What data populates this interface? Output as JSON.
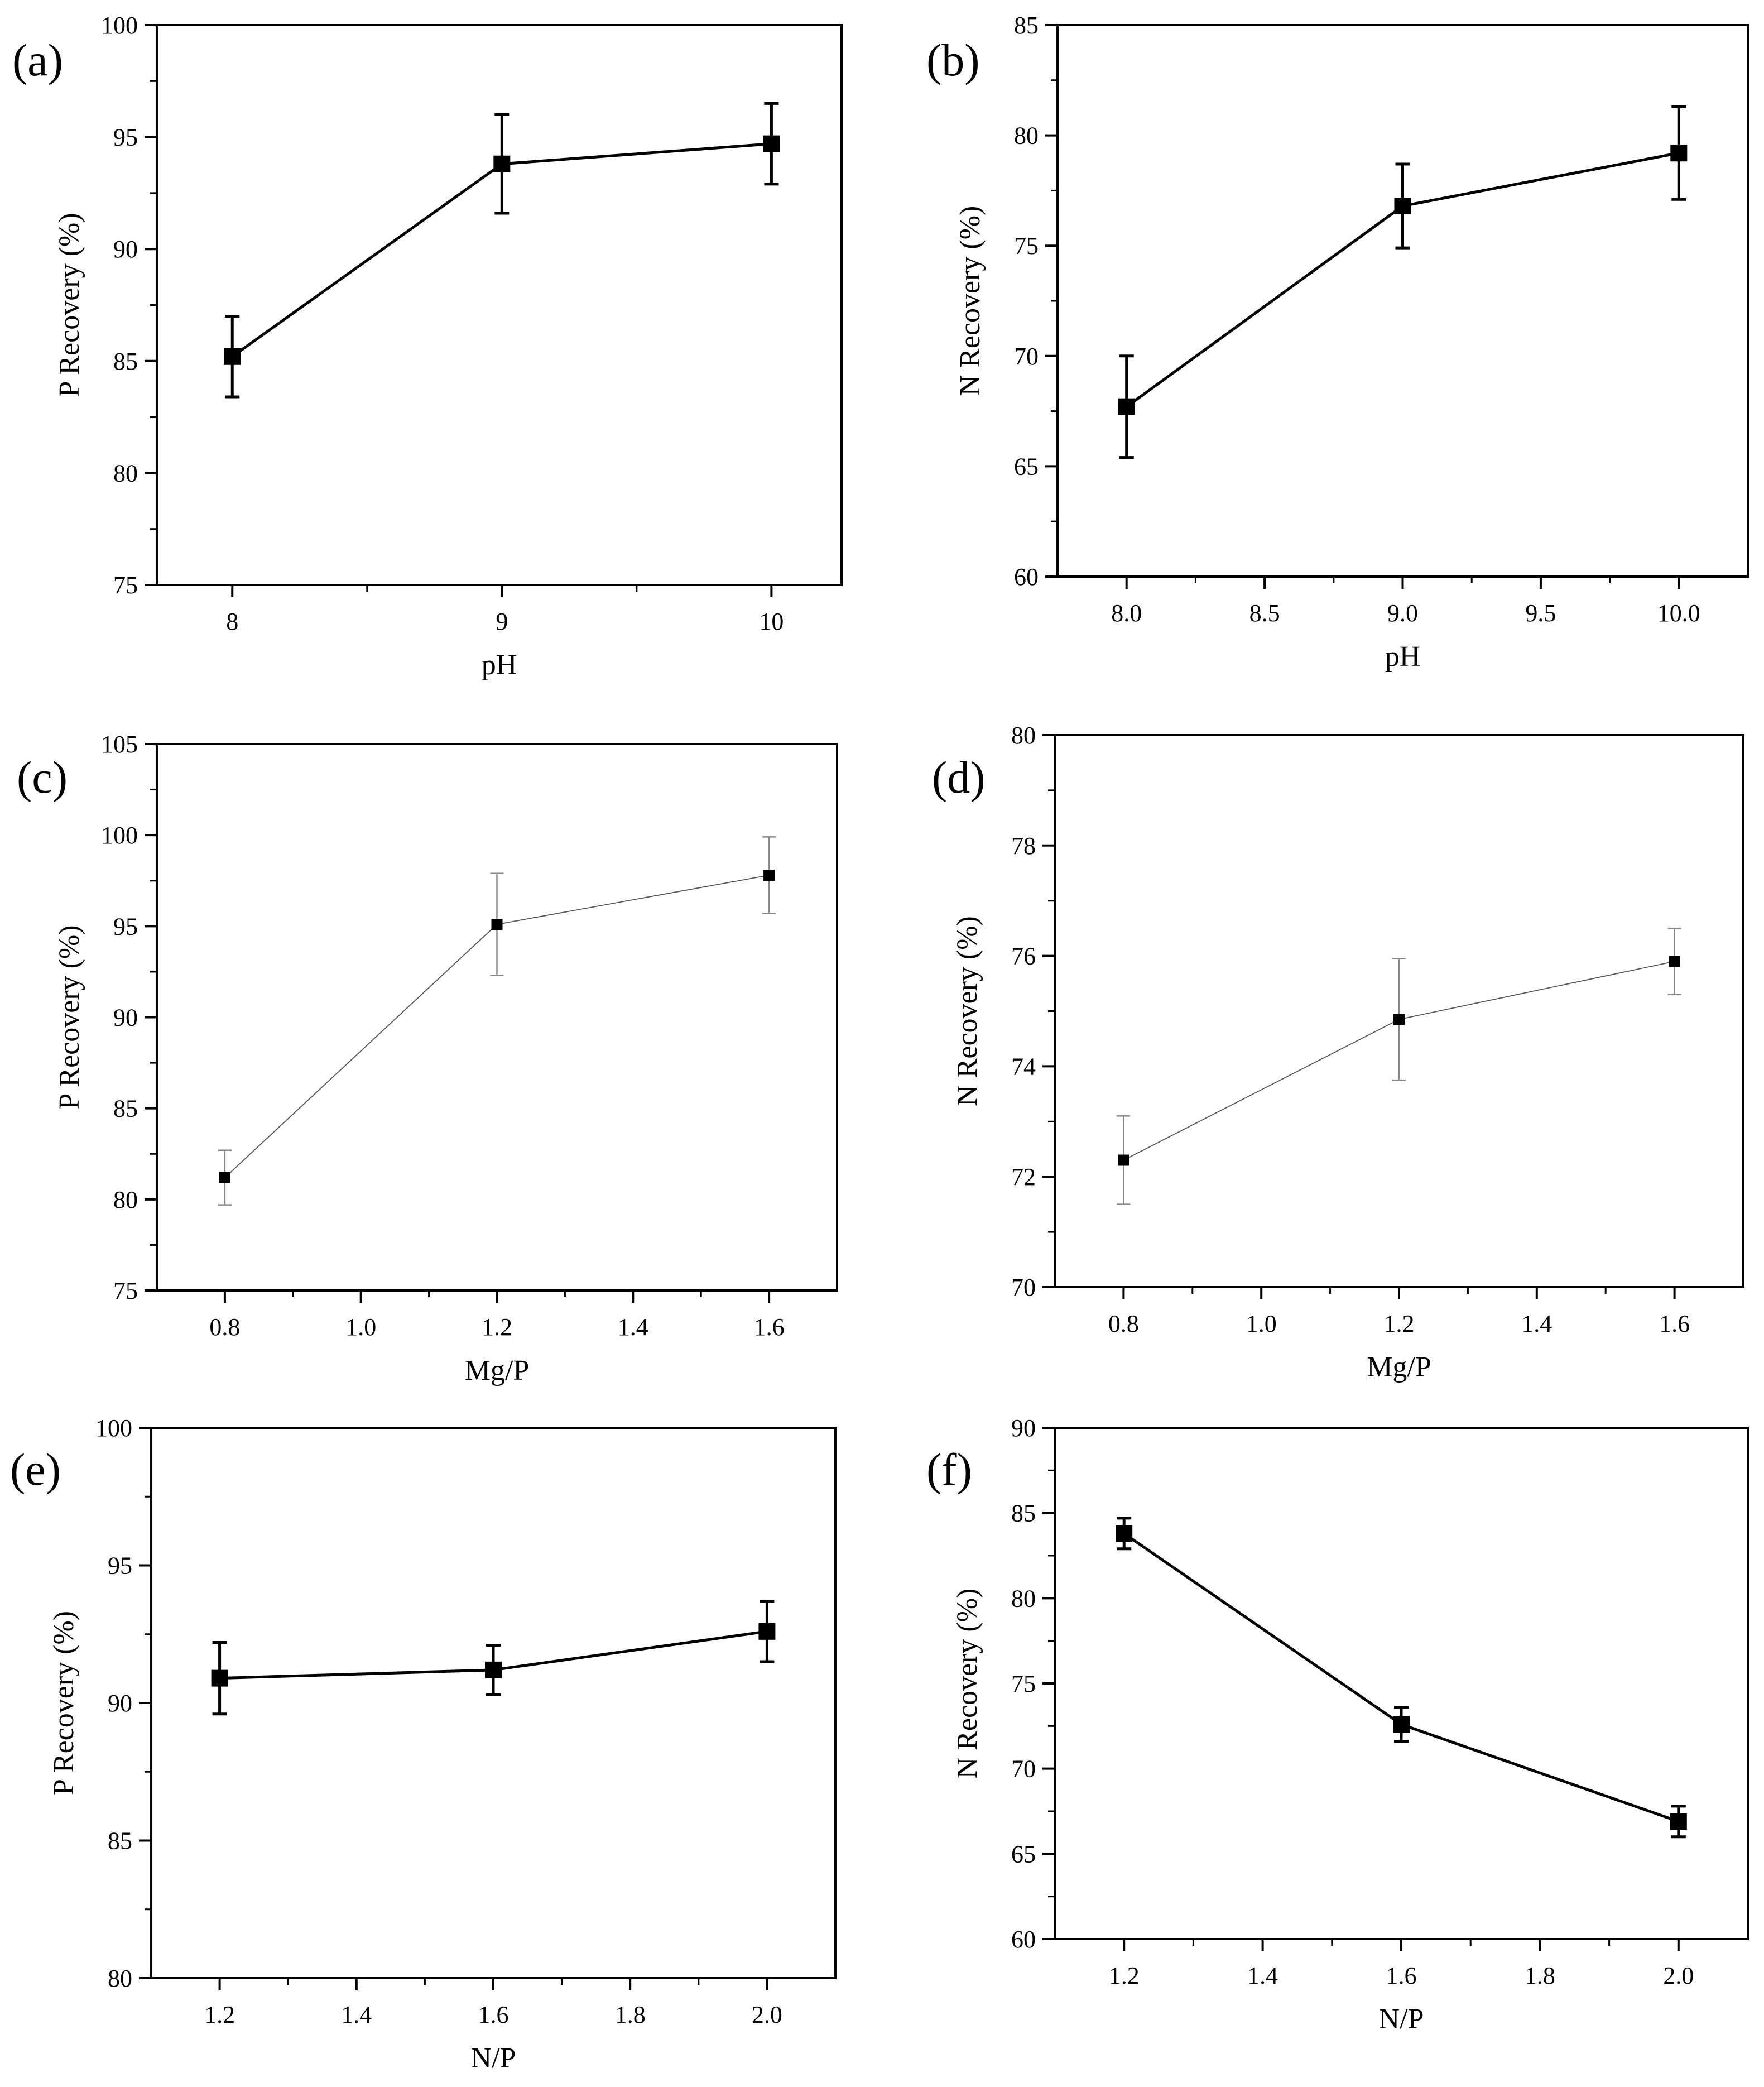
{
  "chart_data": [
    {
      "type": "line",
      "panel_label": "(a)",
      "title": "",
      "xlabel": "pH",
      "ylabel": "P Recovery (%)",
      "xlim": [
        7.72,
        10.26
      ],
      "ylim": [
        75,
        100
      ],
      "xticks": [
        8,
        9,
        10
      ],
      "xtick_labels": [
        "8",
        "9",
        "10"
      ],
      "yticks": [
        75,
        80,
        85,
        90,
        95,
        100
      ],
      "ytick_labels": [
        "75",
        "80",
        "85",
        "90",
        "95",
        "100"
      ],
      "style": "bold",
      "series": [
        {
          "name": "P Recovery",
          "x": [
            8,
            9,
            10
          ],
          "values": [
            85.2,
            93.8,
            94.7
          ],
          "errors": [
            1.8,
            2.2,
            1.8
          ]
        }
      ]
    },
    {
      "type": "line",
      "panel_label": "(b)",
      "title": "",
      "xlabel": "pH",
      "ylabel": "N Recovery (%)",
      "xlim": [
        7.75,
        10.25
      ],
      "ylim": [
        60,
        85
      ],
      "xticks": [
        8.0,
        8.5,
        9.0,
        9.5,
        10.0
      ],
      "xtick_labels": [
        "8.0",
        "8.5",
        "9.0",
        "9.5",
        "10.0"
      ],
      "yticks": [
        60,
        65,
        70,
        75,
        80,
        85
      ],
      "ytick_labels": [
        "60",
        "65",
        "70",
        "75",
        "80",
        "85"
      ],
      "style": "bold",
      "series": [
        {
          "name": "N Recovery",
          "x": [
            8,
            9,
            10
          ],
          "values": [
            67.7,
            76.8,
            79.2
          ],
          "errors": [
            2.3,
            1.9,
            2.1
          ]
        }
      ]
    },
    {
      "type": "line",
      "panel_label": "(c)",
      "title": "",
      "xlabel": "Mg/P",
      "ylabel": "P Recovery (%)",
      "xlim": [
        0.7,
        1.7
      ],
      "ylim": [
        75,
        105
      ],
      "xticks": [
        0.8,
        1.0,
        1.2,
        1.4,
        1.6
      ],
      "xtick_labels": [
        "0.8",
        "1.0",
        "1.2",
        "1.4",
        "1.6"
      ],
      "yticks": [
        75,
        80,
        85,
        90,
        95,
        100,
        105
      ],
      "ytick_labels": [
        "75",
        "80",
        "85",
        "90",
        "95",
        "100",
        "105"
      ],
      "style": "thin",
      "series": [
        {
          "name": "P Recovery",
          "x": [
            0.8,
            1.2,
            1.6
          ],
          "values": [
            81.2,
            95.1,
            97.8
          ],
          "errors": [
            1.5,
            2.8,
            2.1
          ]
        }
      ]
    },
    {
      "type": "line",
      "panel_label": "(d)",
      "title": "",
      "xlabel": "Mg/P",
      "ylabel": "N Recovery (%)",
      "xlim": [
        0.7,
        1.7
      ],
      "ylim": [
        70,
        80
      ],
      "xticks": [
        0.8,
        1.0,
        1.2,
        1.4,
        1.6
      ],
      "xtick_labels": [
        "0.8",
        "1.0",
        "1.2",
        "1.4",
        "1.6"
      ],
      "yticks": [
        70,
        72,
        74,
        76,
        78,
        80
      ],
      "ytick_labels": [
        "70",
        "72",
        "74",
        "76",
        "78",
        "80"
      ],
      "style": "thin",
      "series": [
        {
          "name": "N Recovery",
          "x": [
            0.8,
            1.2,
            1.6
          ],
          "values": [
            72.3,
            74.85,
            75.9
          ],
          "errors": [
            0.8,
            1.1,
            0.6
          ]
        }
      ]
    },
    {
      "type": "line",
      "panel_label": "(e)",
      "title": "",
      "xlabel": "N/P",
      "ylabel": "P Recovery (%)",
      "xlim": [
        1.1,
        2.1
      ],
      "ylim": [
        80,
        100
      ],
      "xticks": [
        1.2,
        1.4,
        1.6,
        1.8,
        2.0
      ],
      "xtick_labels": [
        "1.2",
        "1.4",
        "1.6",
        "1.8",
        "2.0"
      ],
      "yticks": [
        80,
        85,
        90,
        95,
        100
      ],
      "ytick_labels": [
        "80",
        "85",
        "90",
        "95",
        "100"
      ],
      "style": "bold",
      "series": [
        {
          "name": "P Recovery",
          "x": [
            1.2,
            1.6,
            2.0
          ],
          "values": [
            90.9,
            91.2,
            92.6
          ],
          "errors": [
            1.3,
            0.9,
            1.1
          ]
        }
      ]
    },
    {
      "type": "line",
      "panel_label": "(f)",
      "title": "",
      "xlabel": "N/P",
      "ylabel": "N Recovery (%)",
      "xlim": [
        1.1,
        2.1
      ],
      "ylim": [
        60,
        90
      ],
      "xticks": [
        1.2,
        1.4,
        1.6,
        1.8,
        2.0
      ],
      "xtick_labels": [
        "1.2",
        "1.4",
        "1.6",
        "1.8",
        "2.0"
      ],
      "yticks": [
        60,
        65,
        70,
        75,
        80,
        85,
        90
      ],
      "ytick_labels": [
        "60",
        "65",
        "70",
        "75",
        "80",
        "85",
        "90"
      ],
      "style": "bold",
      "series": [
        {
          "name": "N Recovery",
          "x": [
            1.2,
            1.6,
            2.0
          ],
          "values": [
            83.8,
            72.6,
            66.9
          ],
          "errors": [
            0.9,
            1.0,
            0.9
          ]
        }
      ]
    }
  ]
}
